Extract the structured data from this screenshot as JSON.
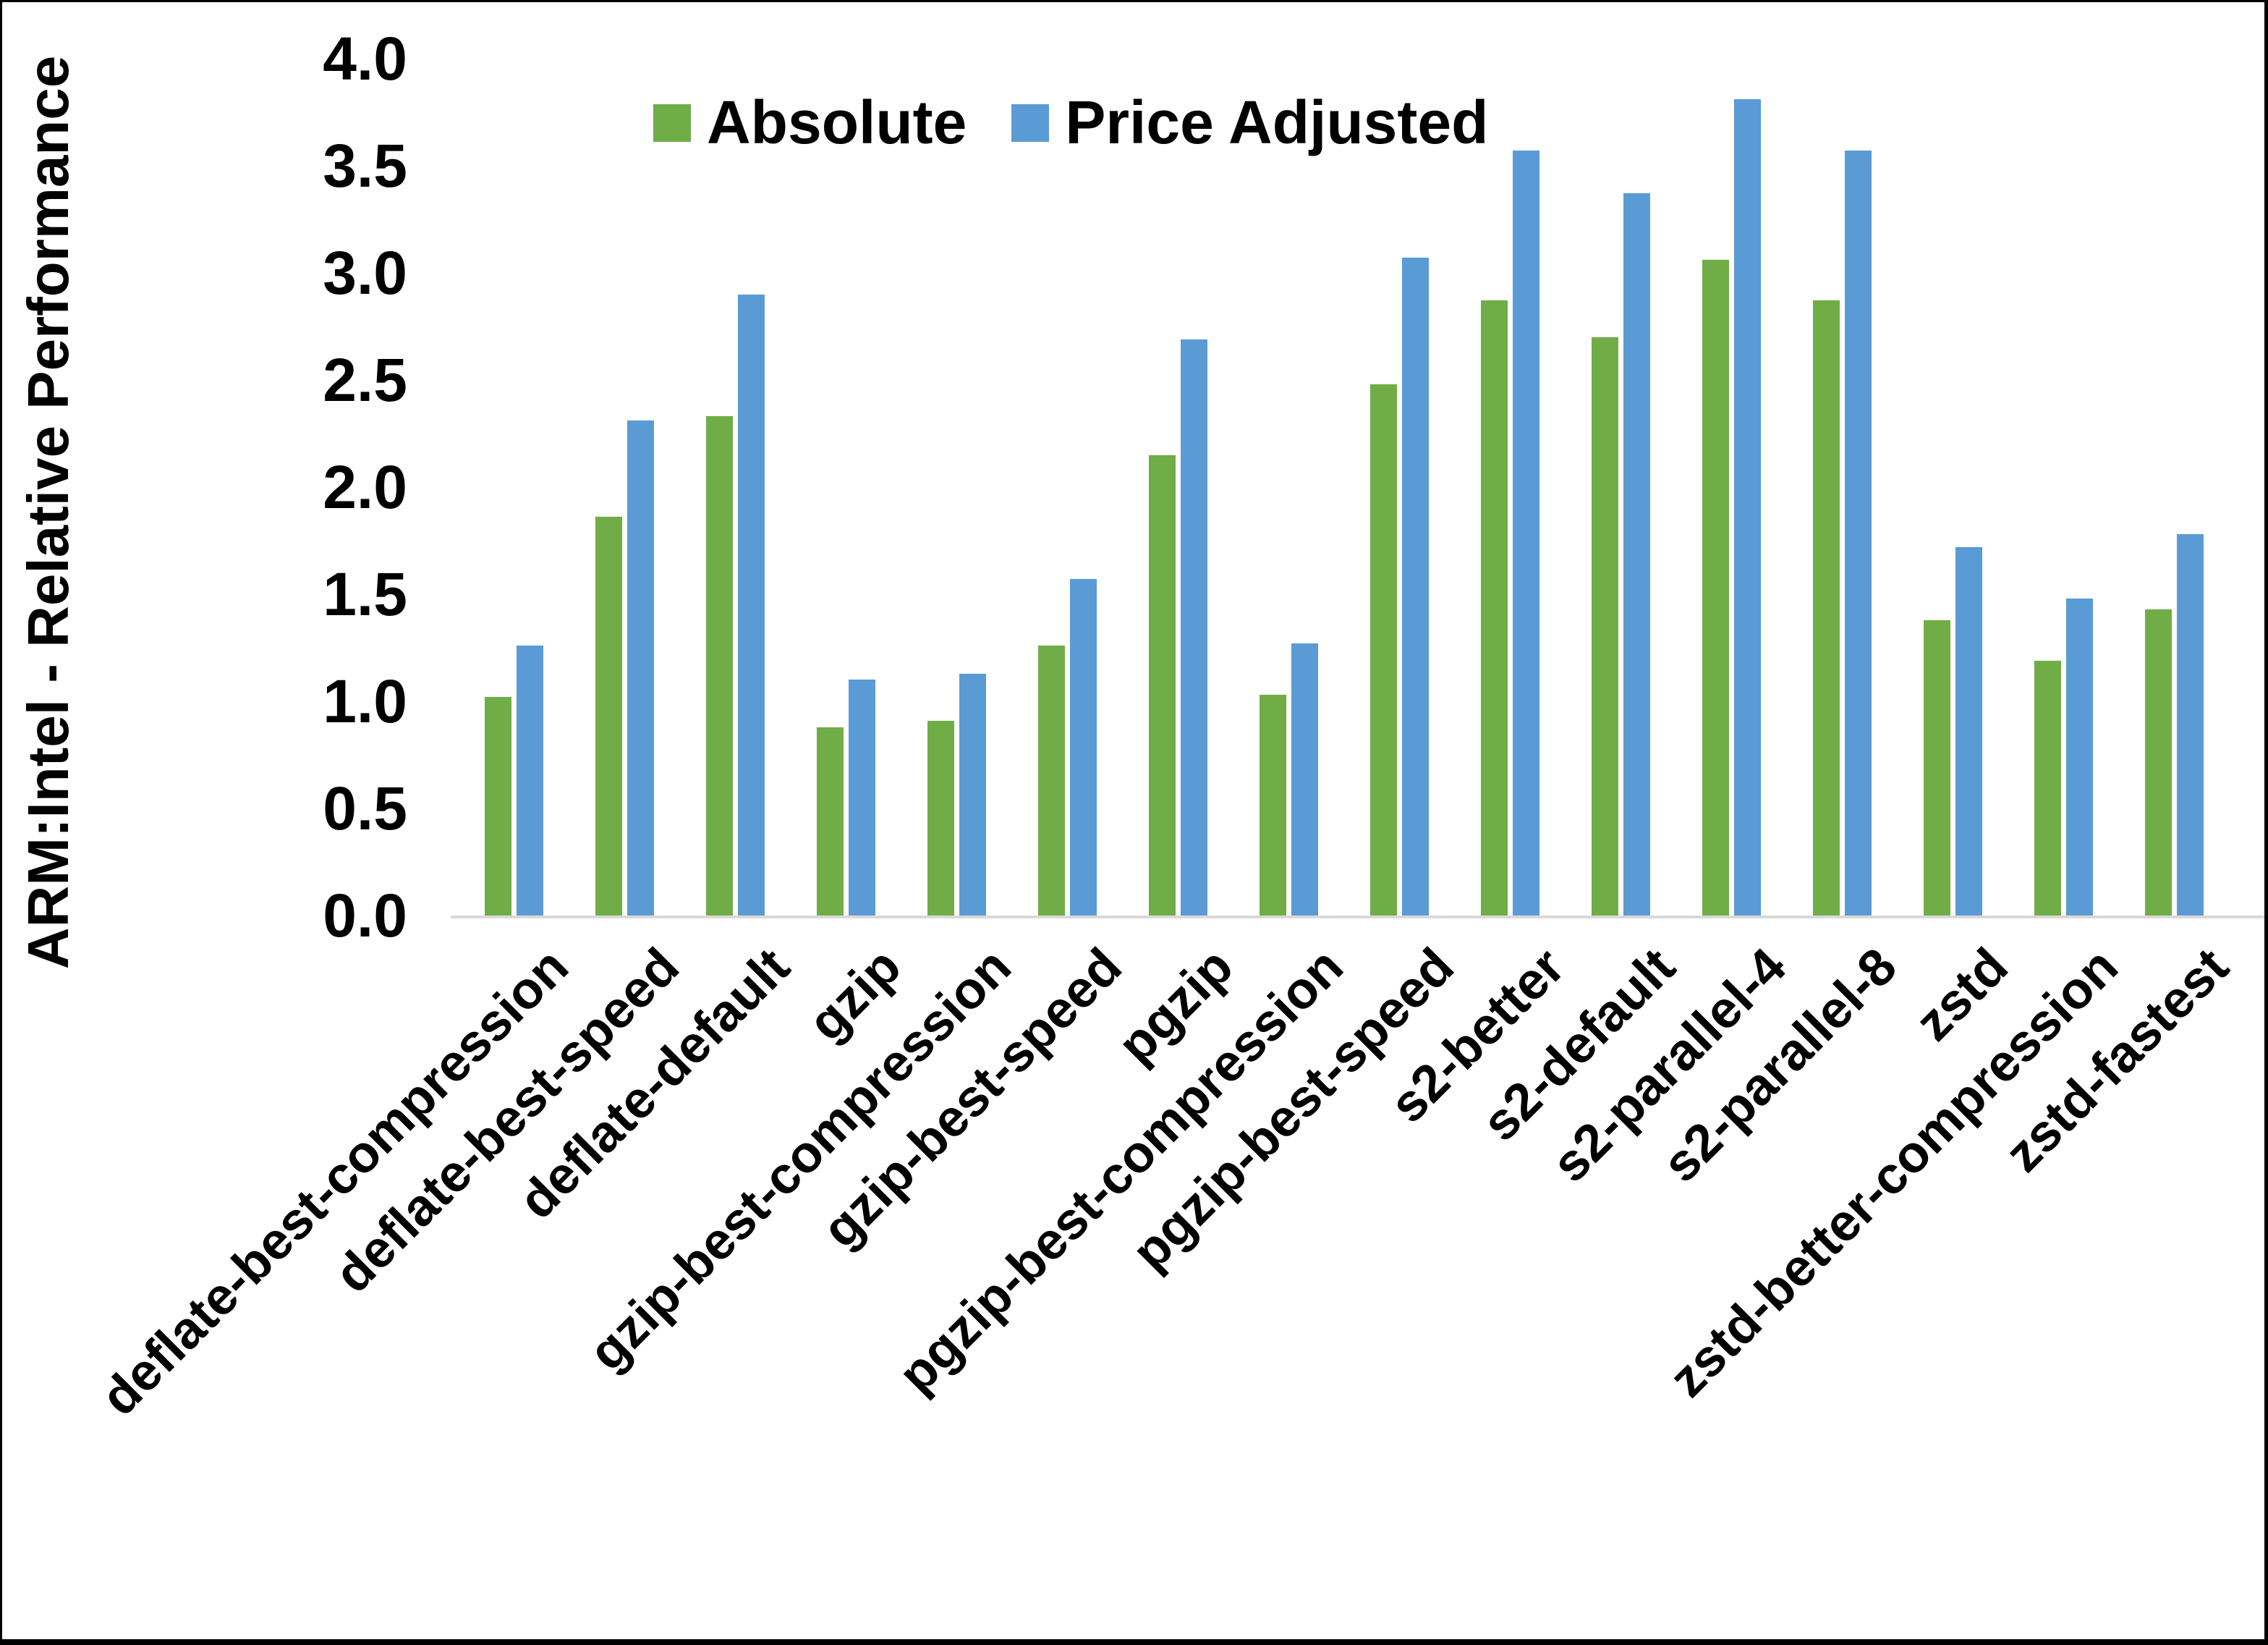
{
  "chart_data": {
    "type": "bar",
    "title": "",
    "xlabel": "",
    "ylabel": "ARM:Intel - Relative Performance",
    "ylim": [
      0.0,
      4.0
    ],
    "ytick_step": 0.5,
    "ytick_decimals": 1,
    "grid": false,
    "legend_position": "top-center",
    "categories": [
      "deflate-best-compression",
      "deflate-best-speed",
      "deflate-default",
      "gzip",
      "gzip-best-compression",
      "gzip-best-speed",
      "pgzip",
      "pgzip-best-compression",
      "pgzip-best-speed",
      "s2-better",
      "s2-default",
      "s2-parallel-4",
      "s2-parallel-8",
      "zstd",
      "zstd-better-compression",
      "zstd-fastest"
    ],
    "series": [
      {
        "name": "Absolute",
        "color": "#70AD47",
        "values": [
          1.02,
          1.86,
          2.33,
          0.88,
          0.91,
          1.26,
          2.15,
          1.03,
          2.48,
          2.87,
          2.7,
          3.06,
          2.87,
          1.38,
          1.19,
          1.43
        ]
      },
      {
        "name": "Price Adjusted",
        "color": "#5B9BD5",
        "values": [
          1.26,
          2.31,
          2.9,
          1.1,
          1.13,
          1.57,
          2.69,
          1.27,
          3.07,
          3.57,
          3.37,
          3.81,
          3.57,
          1.72,
          1.48,
          1.78
        ]
      }
    ],
    "colors": {
      "axis_line": "#d9d9d9",
      "text": "#000000",
      "frame_border": "#000000",
      "background": "#ffffff"
    }
  }
}
